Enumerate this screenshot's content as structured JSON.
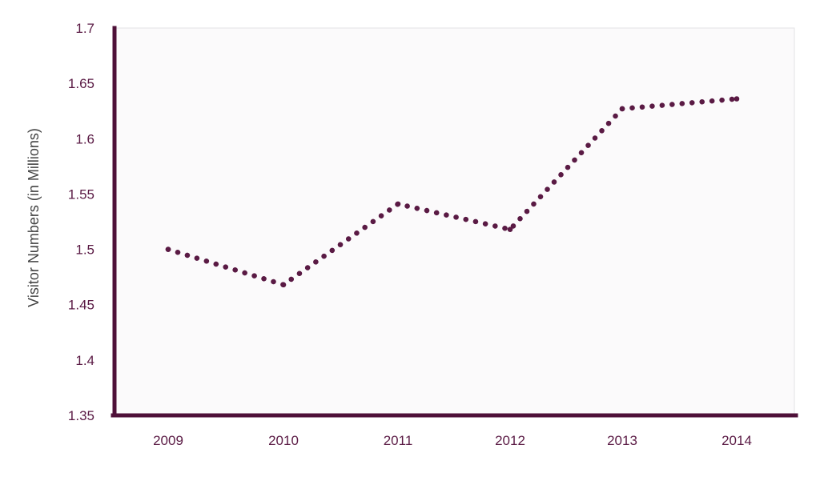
{
  "chart_data": {
    "type": "line",
    "title": "",
    "xlabel": "",
    "ylabel": "Visitor Numbers (in Millions)",
    "categories": [
      "2009",
      "2010",
      "2011",
      "2012",
      "2013",
      "2014"
    ],
    "series": [
      {
        "values": [
          1.5,
          1.468,
          1.541,
          1.518,
          1.627,
          1.636
        ]
      }
    ],
    "ylim": [
      1.35,
      1.7
    ],
    "yticks": [
      "1.35",
      "1.4",
      "1.45",
      "1.5",
      "1.55",
      "1.6",
      "1.65",
      "1.7"
    ],
    "grid": false,
    "line_style": "dotted",
    "colors": {
      "line": "#5a1a44",
      "axis": "#4e1038",
      "plot_background": "#fbfafb",
      "plot_border": "#e3e3e6",
      "tick_text": "#5a1a44",
      "axis_title_text": "#444444"
    }
  }
}
